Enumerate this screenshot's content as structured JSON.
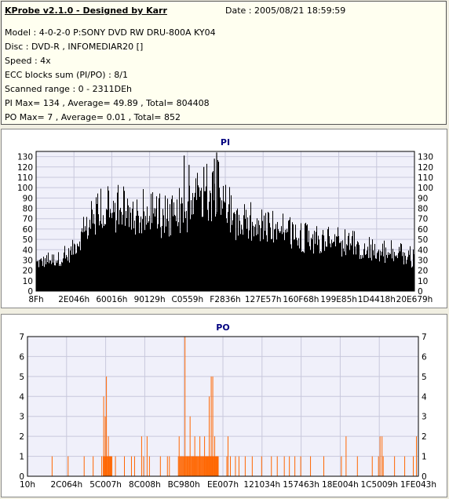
{
  "header": {
    "title": "KProbe v2.1.0 - Designed by Karr",
    "date": "Date : 2005/08/21 18:59:59",
    "lines": [
      "Model : 4-0-2-0 P:SONY    DVD RW DRU-800A  KY04",
      "Disc : DVD-R , INFOMEDIAR20 []",
      "Speed : 4x",
      "ECC blocks sum (PI/PO) : 8/1",
      "Scanned range : 0 - 2311DEh",
      "PI Max= 134 , Average= 49.89 , Total= 804408",
      "PO Max= 7 , Average= 0.01 , Total= 852"
    ]
  },
  "colors": {
    "pi_bar": "#000000",
    "po_bar": "#ff6600",
    "plot_bg": "#f0f0fa",
    "grid": "#c8c8dc",
    "title": "#000080"
  },
  "chart_data": [
    {
      "type": "bar",
      "title": "PI",
      "ylim": [
        0,
        135
      ],
      "yticks": [
        0,
        10,
        20,
        30,
        40,
        50,
        60,
        70,
        80,
        90,
        100,
        110,
        120,
        130
      ],
      "xtick_labels": [
        "8Fh",
        "2E046h",
        "60016h",
        "90129h",
        "C0559h",
        "F2836h",
        "127E57h",
        "160F68h",
        "199E85h",
        "1D4418h",
        "20E679h"
      ],
      "xlim": [
        0,
        100
      ],
      "grid": true,
      "envelope": {
        "x": [
          0,
          4,
          8,
          9,
          10,
          12,
          14,
          16,
          18,
          20,
          22,
          24,
          26,
          28,
          30,
          32,
          34,
          36,
          38,
          40,
          41,
          42,
          44,
          45,
          46,
          47,
          48,
          49,
          50,
          52,
          54,
          56,
          58,
          60,
          62,
          64,
          66,
          68,
          70,
          72,
          74,
          76,
          78,
          80,
          82,
          84,
          86,
          88,
          90,
          92,
          94,
          96,
          98,
          100
        ],
        "y": [
          33,
          37,
          40,
          45,
          52,
          65,
          78,
          82,
          88,
          90,
          88,
          86,
          85,
          84,
          82,
          80,
          80,
          82,
          86,
          90,
          95,
          98,
          102,
          112,
          104,
          110,
          124,
          112,
          98,
          80,
          76,
          74,
          72,
          70,
          67,
          65,
          63,
          62,
          60,
          58,
          57,
          56,
          55,
          54,
          52,
          50,
          48,
          46,
          45,
          44,
          42,
          40,
          38,
          36
        ]
      },
      "spikes": [
        {
          "x": 21.5,
          "y": 95
        },
        {
          "x": 39.0,
          "y": 131
        },
        {
          "x": 40.3,
          "y": 122
        },
        {
          "x": 47.0,
          "y": 128
        },
        {
          "x": 47.6,
          "y": 134
        },
        {
          "x": 48.1,
          "y": 125
        },
        {
          "x": 44.2,
          "y": 120
        }
      ]
    },
    {
      "type": "bar",
      "title": "PO",
      "ylim": [
        0,
        7
      ],
      "yticks": [
        0,
        1,
        2,
        3,
        4,
        5,
        6,
        7
      ],
      "xtick_labels": [
        "10h",
        "2C064h",
        "5C007h",
        "8C008h",
        "BC980h",
        "EE007h",
        "121034h",
        "157463h",
        "18E004h",
        "1C5009h",
        "1FE043h"
      ],
      "xlim": [
        0,
        100
      ],
      "grid": true,
      "ones": [
        6.2,
        10.3,
        14.4,
        16.7,
        18.9,
        19.8,
        21.0,
        22.4,
        24.7,
        26.5,
        27.3,
        29.6,
        31.1,
        33.9,
        35.7,
        36.2,
        38.5,
        40.9,
        42.3,
        43.1,
        45.7,
        46.1,
        48.4,
        50.9,
        51.8,
        53.1,
        54.0,
        55.6,
        57.4,
        59.8,
        62.3,
        63.8,
        65.6,
        66.9,
        68.3,
        69.8,
        72.3,
        75.7,
        80.2,
        84.3,
        88.1,
        89.7,
        90.9,
        93.8,
        96.4,
        98.6
      ],
      "cluster_ranges": [
        [
          19.3,
          21.5
        ],
        [
          38.9,
          48.8
        ]
      ],
      "tall": [
        {
          "x": 19.4,
          "y": 4
        },
        {
          "x": 19.8,
          "y": 3
        },
        {
          "x": 20.1,
          "y": 5
        },
        {
          "x": 20.6,
          "y": 2
        },
        {
          "x": 29.1,
          "y": 2
        },
        {
          "x": 30.5,
          "y": 2
        },
        {
          "x": 38.7,
          "y": 2
        },
        {
          "x": 40.2,
          "y": 7
        },
        {
          "x": 41.5,
          "y": 3
        },
        {
          "x": 42.7,
          "y": 2
        },
        {
          "x": 44.0,
          "y": 2
        },
        {
          "x": 45.2,
          "y": 2
        },
        {
          "x": 46.4,
          "y": 4
        },
        {
          "x": 46.9,
          "y": 5
        },
        {
          "x": 47.3,
          "y": 5
        },
        {
          "x": 47.8,
          "y": 2
        },
        {
          "x": 51.2,
          "y": 2
        },
        {
          "x": 81.4,
          "y": 2
        },
        {
          "x": 90.1,
          "y": 2
        },
        {
          "x": 90.6,
          "y": 2
        },
        {
          "x": 99.4,
          "y": 2
        }
      ]
    }
  ]
}
